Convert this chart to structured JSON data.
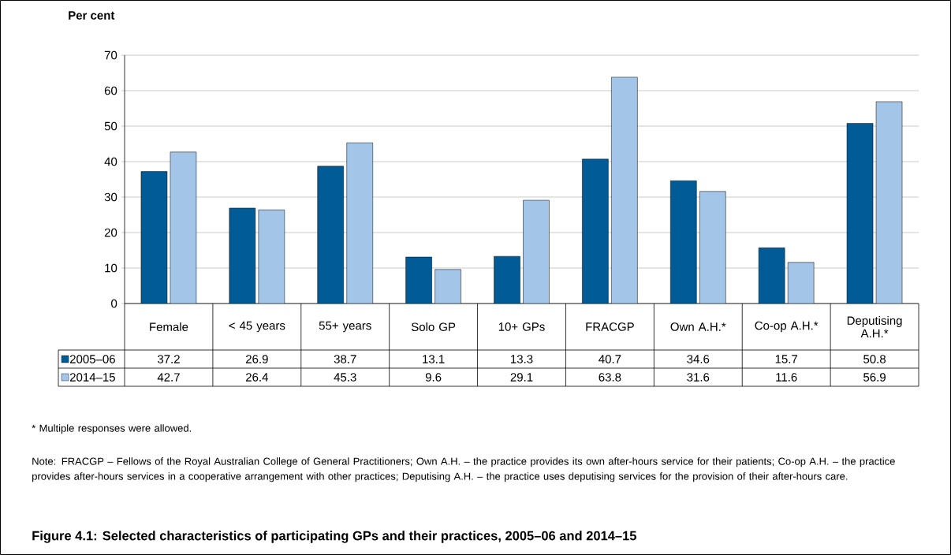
{
  "chart_data": {
    "type": "bar",
    "title": "Figure 4.1: Selected characteristics of participating GPs and their practices, 2005–06 and 2014–15",
    "ylabel": "Per cent",
    "categories": [
      "Female",
      "< 45 years",
      "55+ years",
      "Solo GP",
      "10+ GPs",
      "FRACGP",
      "Own A.H.*",
      "Co-op A.H.*",
      "Deputising A.H.*"
    ],
    "series": [
      {
        "name": "2005–06",
        "color": "#005b96",
        "values": [
          37.2,
          26.9,
          38.7,
          13.1,
          13.3,
          40.7,
          34.6,
          15.7,
          50.8
        ]
      },
      {
        "name": "2014–15",
        "color": "#a3c6e8",
        "values": [
          42.7,
          26.4,
          45.3,
          9.6,
          29.1,
          63.8,
          31.6,
          11.6,
          56.9
        ]
      }
    ],
    "ylim": [
      0,
      70
    ],
    "yticks": [
      0,
      10,
      20,
      30,
      40,
      50,
      60,
      70
    ],
    "grid": "y",
    "legend": "bottom",
    "data_labels": true,
    "annotations": [
      "* Multiple responses were allowed.",
      "Note: FRACGP – Fellows of the Royal Australian College of General Practitioners; Own A.H. – the practice provides its own after-hours service for their patients; Co-op A.H. – the practice provides after-hours services in a cooperative arrangement with other practices; Deputising A.H. – the practice uses deputising services for the provision of their after-hours care."
    ]
  }
}
